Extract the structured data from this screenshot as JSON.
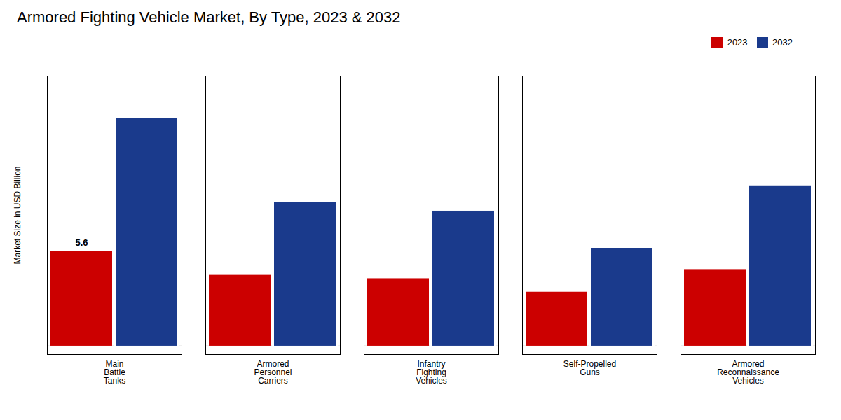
{
  "chart_data": {
    "type": "bar",
    "title": "Armored Fighting Vehicle Market, By Type, 2023 & 2032",
    "ylabel": "Market Size in USD Billion",
    "categories": [
      "Main\nBattle\nTanks",
      "Armored\nPersonnel\nCarriers",
      "Infantry\nFighting\nVehicles",
      "Self-Propelled\nGuns",
      "Armored\nReconnaissance\nVehicles"
    ],
    "series": [
      {
        "name": "2023",
        "color": "#cc0000",
        "values": [
          5.6,
          4.2,
          4.0,
          3.2,
          4.5
        ]
      },
      {
        "name": "2032",
        "color": "#1a3a8c",
        "values": [
          13.5,
          8.5,
          8.0,
          5.8,
          9.5
        ]
      }
    ],
    "ylim": [
      -0.5,
      16
    ],
    "yticks": [],
    "tick_labels": "x",
    "grid": false,
    "legend": "upper right",
    "hline": {
      "y": 0,
      "line_style": "dashed"
    },
    "annotations": [
      {
        "text": "5.6",
        "x": "Main\nBattle\nTanks",
        "series": "2023",
        "y": 5.6
      }
    ]
  }
}
